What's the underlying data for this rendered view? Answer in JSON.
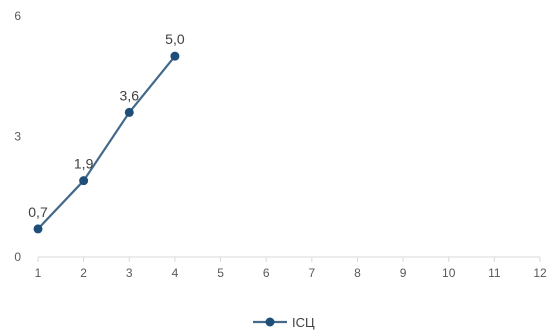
{
  "chart_data": {
    "type": "line",
    "x": [
      1,
      2,
      3,
      4
    ],
    "series": [
      {
        "name": "ІСЦ",
        "values": [
          0.7,
          1.9,
          3.6,
          5.0
        ],
        "labels": [
          "0,7",
          "1,9",
          "3,6",
          "5,0"
        ]
      }
    ],
    "x_ticks": [
      "1",
      "2",
      "3",
      "4",
      "5",
      "6",
      "7",
      "8",
      "9",
      "10",
      "11",
      "12"
    ],
    "y_ticks": [
      "0",
      "3",
      "6"
    ],
    "xlim": [
      1,
      12
    ],
    "ylim": [
      0,
      6
    ],
    "grid": false,
    "legend": "bottom",
    "colors": {
      "line": "#44698b",
      "marker": "#1f4e79",
      "axis": "#d9d9d9"
    }
  }
}
